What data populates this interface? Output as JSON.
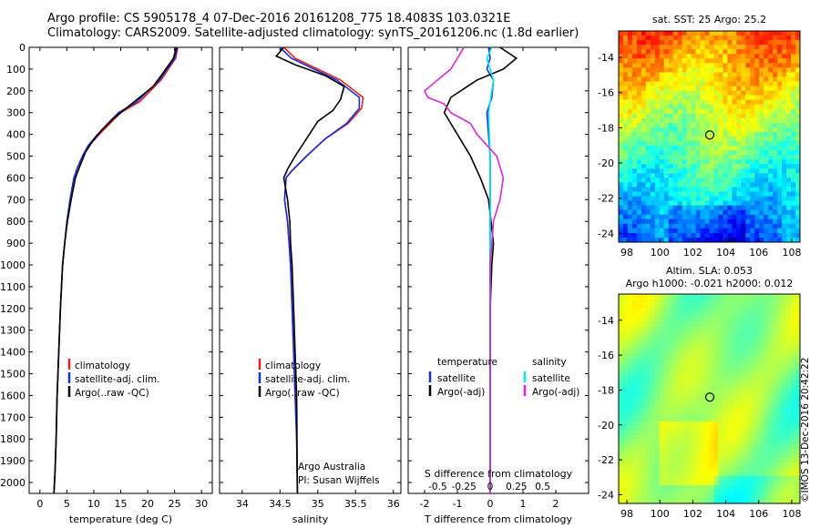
{
  "header": {
    "line1": "Argo profile: CS 5905178_4 07-Dec-2016 20161208_775 18.4083S 103.0321E",
    "line2": "Climatology: CARS2009. Satellite-adjusted climatology: synTS_20161206.nc (1.8d earlier)"
  },
  "side_text": "©IMOS 13-Dec-2016 20:42:22",
  "colors": {
    "climatology": "#e8231f",
    "satellite": "#1530d8",
    "argo": "#000000",
    "satellite_salinity": "#00e5f0",
    "argo_salinity": "#d825d6"
  },
  "chart_data": [
    {
      "type": "line",
      "panel": "temperature",
      "xlabel": "temperature (deg C)",
      "xlim": [
        -2,
        32
      ],
      "xticks": [
        0,
        5,
        10,
        15,
        20,
        25,
        30
      ],
      "ylim": [
        2050,
        0
      ],
      "yticks": [
        0,
        100,
        200,
        300,
        400,
        500,
        600,
        700,
        800,
        900,
        1000,
        1100,
        1200,
        1300,
        1400,
        1500,
        1600,
        1700,
        1800,
        1900,
        2000
      ],
      "legend": [
        "climatology",
        "satellite-adj. clim.",
        "Argo(..raw -QC)"
      ],
      "series": [
        {
          "name": "climatology",
          "color": "#e8231f",
          "x": [
            25.6,
            25.2,
            22.5,
            18.5,
            15.0,
            13.0,
            11.0,
            9.2,
            8.0,
            7.0,
            6.3,
            5.6,
            5.0,
            4.6,
            4.2,
            3.8,
            3.5,
            3.2,
            3.0,
            2.8,
            2.7,
            2.6
          ],
          "y": [
            0,
            50,
            150,
            250,
            300,
            350,
            400,
            450,
            500,
            550,
            600,
            700,
            800,
            900,
            1000,
            1200,
            1400,
            1600,
            1800,
            1950,
            2000,
            2050
          ]
        },
        {
          "name": "satellite-adj. clim.",
          "color": "#1530d8",
          "x": [
            25.5,
            25.0,
            22.2,
            18.0,
            14.6,
            12.6,
            10.7,
            9.0,
            7.9,
            7.0,
            6.3,
            5.6,
            5.0,
            4.6,
            4.2,
            3.8,
            3.5,
            3.2,
            3.0,
            2.8,
            2.7,
            2.6
          ],
          "y": [
            0,
            50,
            150,
            250,
            300,
            350,
            400,
            450,
            500,
            550,
            600,
            700,
            800,
            900,
            1000,
            1200,
            1400,
            1600,
            1800,
            1950,
            2000,
            2050
          ]
        },
        {
          "name": "Argo(..raw -QC)",
          "color": "#000000",
          "x": [
            25.3,
            24.8,
            22.5,
            21.0,
            18.5,
            16.0,
            13.5,
            11.5,
            9.8,
            8.5,
            7.5,
            6.6,
            5.8,
            5.1,
            4.6,
            4.2,
            3.8,
            3.5,
            3.2,
            3.0,
            2.8,
            2.7,
            2.6
          ],
          "y": [
            0,
            50,
            130,
            180,
            230,
            280,
            330,
            380,
            430,
            480,
            540,
            600,
            700,
            800,
            900,
            1000,
            1200,
            1400,
            1600,
            1800,
            1950,
            2000,
            2050
          ]
        }
      ]
    },
    {
      "type": "line",
      "panel": "salinity",
      "xlabel": "salinity",
      "xlim": [
        33.7,
        36.1
      ],
      "xticks": [
        34,
        34.5,
        35,
        35.5,
        36
      ],
      "ylim": [
        2050,
        0
      ],
      "legend": [
        "climatology",
        "satellite-adj. clim.",
        "Argo(..raw -QC)"
      ],
      "annotations": [
        "Argo Australia",
        "PI: Susan Wijffels"
      ],
      "series": [
        {
          "name": "climatology",
          "color": "#e8231f",
          "x": [
            34.55,
            34.7,
            35.0,
            35.3,
            35.6,
            35.58,
            35.4,
            35.1,
            34.85,
            34.65,
            34.58,
            34.56,
            34.6,
            34.62,
            34.64,
            34.66,
            34.68,
            34.7,
            34.72,
            34.73
          ],
          "y": [
            0,
            50,
            100,
            150,
            230,
            280,
            350,
            420,
            500,
            570,
            600,
            700,
            800,
            900,
            1000,
            1200,
            1400,
            1600,
            1800,
            2050
          ]
        },
        {
          "name": "satellite-adj. clim.",
          "color": "#1530d8",
          "x": [
            34.5,
            34.65,
            34.95,
            35.25,
            35.55,
            35.55,
            35.38,
            35.1,
            34.85,
            34.65,
            34.58,
            34.56,
            34.6,
            34.62,
            34.64,
            34.66,
            34.68,
            34.7,
            34.72,
            34.73
          ],
          "y": [
            0,
            50,
            100,
            150,
            230,
            280,
            350,
            420,
            500,
            570,
            600,
            700,
            800,
            900,
            1000,
            1200,
            1400,
            1600,
            1800,
            2050
          ]
        },
        {
          "name": "Argo(..raw -QC)",
          "color": "#000000",
          "x": [
            34.55,
            34.45,
            34.7,
            35.1,
            35.35,
            35.3,
            35.2,
            35.0,
            34.85,
            34.7,
            34.6,
            34.55,
            34.6,
            34.63,
            34.64,
            34.66,
            34.68,
            34.7,
            34.72,
            34.73
          ],
          "y": [
            0,
            40,
            80,
            130,
            180,
            240,
            290,
            340,
            420,
            500,
            560,
            600,
            700,
            800,
            900,
            1000,
            1200,
            1400,
            1600,
            2050
          ]
        }
      ]
    },
    {
      "type": "line",
      "panel": "difference",
      "xlabel": "T difference from climatology",
      "xlim": [
        -2.5,
        3.0
      ],
      "xticks": [
        -2,
        -1,
        0,
        1,
        2
      ],
      "secondary_axis_label": "S difference from climatology",
      "secondary_ticks": [
        {
          "label": "-0.5",
          "t": -1.6
        },
        {
          "label": "-0.25",
          "t": -0.8
        },
        {
          "label": "0",
          "t": 0
        },
        {
          "label": "0.25",
          "t": 0.8
        },
        {
          "label": "0.5",
          "t": 1.6
        }
      ],
      "ylim": [
        2050,
        0
      ],
      "legend_titles": [
        "temperature",
        "salinity"
      ],
      "legend": [
        "satellite",
        "Argo(-adj)",
        "satellite",
        "Argo(-adj)"
      ],
      "series": [
        {
          "name": "temperature satellite",
          "color": "#1530d8",
          "x": [
            -0.05,
            0.0,
            -0.1,
            0.1,
            0.05,
            -0.1,
            -0.05,
            0.0,
            0.0,
            0.0,
            0.0,
            0.0
          ],
          "y": [
            0,
            50,
            100,
            150,
            230,
            300,
            400,
            500,
            600,
            800,
            1200,
            2050
          ]
        },
        {
          "name": "temperature Argo(-adj)",
          "color": "#000000",
          "x": [
            0.3,
            0.8,
            0.4,
            -0.4,
            -1.2,
            -1.4,
            -1.0,
            -0.6,
            -0.3,
            -0.1,
            -0.05,
            0.1,
            0.05,
            0.0,
            0.0,
            0.0,
            0.0
          ],
          "y": [
            0,
            50,
            100,
            150,
            230,
            300,
            400,
            500,
            600,
            680,
            700,
            900,
            1000,
            1200,
            1400,
            1800,
            2050
          ]
        },
        {
          "name": "salinity satellite",
          "color": "#00e5f0",
          "x": [
            0.05,
            -0.1,
            0.1,
            -0.05,
            0.0,
            0.0,
            0.0,
            0.0
          ],
          "y": [
            0,
            50,
            150,
            300,
            500,
            700,
            1200,
            2050
          ]
        },
        {
          "name": "salinity Argo(-adj)",
          "color": "#d825d6",
          "x": [
            -0.8,
            -1.0,
            -1.2,
            -2.0,
            -1.9,
            -1.4,
            -1.2,
            -0.6,
            -0.4,
            0.2,
            0.4,
            0.3,
            0.1,
            0.0,
            0.0,
            0.0,
            0.0
          ],
          "y": [
            0,
            50,
            100,
            200,
            230,
            260,
            300,
            350,
            400,
            500,
            600,
            700,
            800,
            1000,
            1200,
            1800,
            2050
          ]
        }
      ]
    },
    {
      "type": "heatmap",
      "panel": "map-sst",
      "title": "sat. SST: 25 Argo: 25.2",
      "xticks": [
        98,
        100,
        102,
        104,
        106,
        108
      ],
      "yticks": [
        -14,
        -16,
        -18,
        -20,
        -22,
        -24
      ],
      "xlim": [
        97.5,
        108.5
      ],
      "ylim": [
        -24.5,
        -12.5
      ],
      "marker": {
        "lon": 103.03,
        "lat": -18.41
      },
      "colormap": "jet"
    },
    {
      "type": "heatmap",
      "panel": "map-sla",
      "title": "Altim. SLA: 0.053",
      "subtitle": "Argo h1000: -0.021 h2000: 0.012",
      "xticks": [
        98,
        100,
        102,
        104,
        106,
        108
      ],
      "yticks": [
        -14,
        -16,
        -18,
        -20,
        -22,
        -24
      ],
      "xlim": [
        97.5,
        108.5
      ],
      "ylim": [
        -24.5,
        -12.5
      ],
      "marker": {
        "lon": 103.03,
        "lat": -18.41
      },
      "colormap": "jet"
    }
  ]
}
